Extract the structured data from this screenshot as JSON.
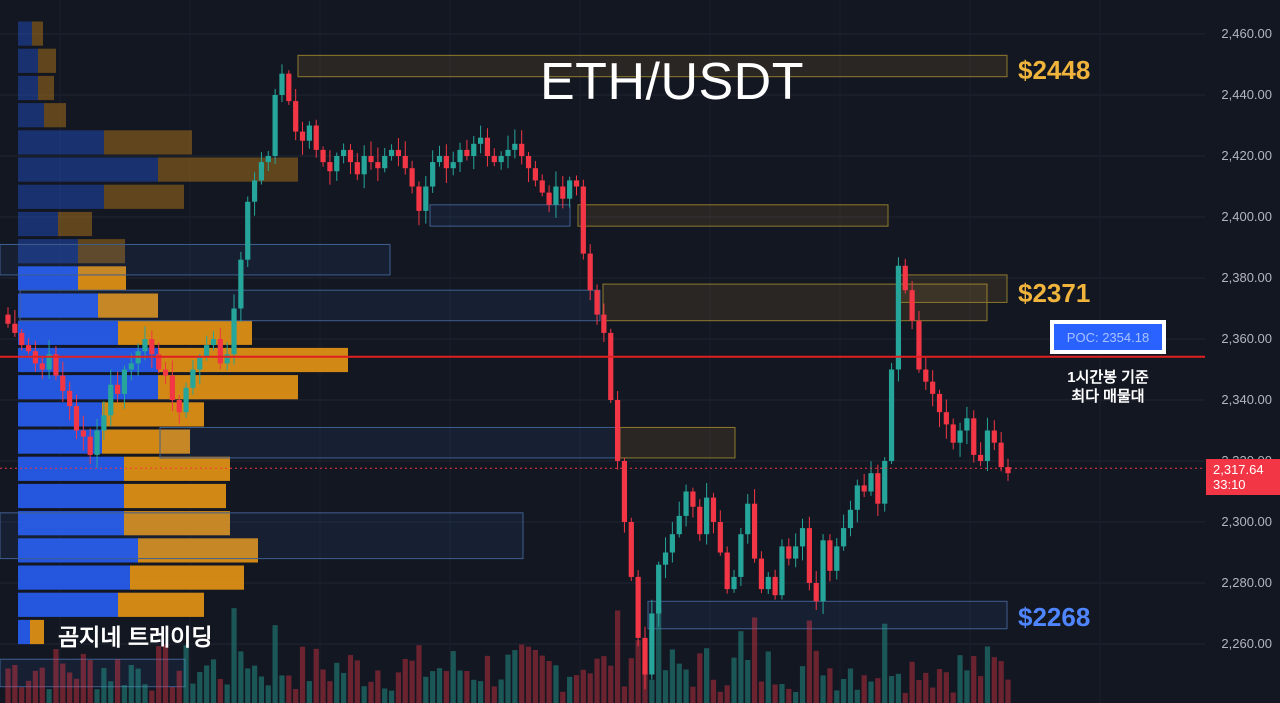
{
  "title": "ETH/USDT",
  "brand": "곰지네 트레이딩",
  "levels": {
    "top": "$2448",
    "mid": "$2371",
    "bottom": "$2268"
  },
  "poc": {
    "label": "POC: 2354.18",
    "value": 2354.18,
    "note_line1": "1시간봉 기준",
    "note_line2": "최다 매물대"
  },
  "last_price": {
    "value_label": "2,317.64",
    "countdown": "33:10",
    "value": 2317.64
  },
  "colors": {
    "background": "#131722",
    "up": "#26a69a",
    "down": "#f23645",
    "poc_line": "#e02020",
    "level_yellow": "#f0b43c",
    "level_blue": "#4f86ff",
    "profile_blue": "#2962ff",
    "profile_orange": "#f39c12"
  },
  "chart_data": {
    "type": "candlestick",
    "title": "ETH/USDT",
    "y_axis": {
      "side": "right",
      "ylim": [
        2245,
        2465
      ],
      "ticks": [
        2460,
        2440,
        2420,
        2400,
        2380,
        2360,
        2340,
        2320,
        2300,
        2280,
        2260
      ],
      "tick_labels": [
        "2,460.00",
        "2,440.00",
        "2,420.00",
        "2,400.00",
        "2,380.00",
        "2,360.00",
        "2,340.00",
        "2,320.00",
        "2,300.00",
        "2,280.00",
        "2,260.00"
      ]
    },
    "grid": true,
    "closes": [
      2365,
      2362,
      2358,
      2356,
      2352,
      2350,
      2355,
      2348,
      2343,
      2338,
      2330,
      2328,
      2322,
      2330,
      2335,
      2345,
      2342,
      2350,
      2352,
      2356,
      2360,
      2355,
      2350,
      2348,
      2340,
      2336,
      2344,
      2350,
      2354,
      2358,
      2360,
      2352,
      2355,
      2370,
      2386,
      2405,
      2412,
      2418,
      2420,
      2440,
      2447,
      2438,
      2428,
      2425,
      2430,
      2422,
      2418,
      2415,
      2420,
      2422,
      2418,
      2414,
      2420,
      2418,
      2416,
      2420,
      2422,
      2420,
      2416,
      2410,
      2402,
      2410,
      2418,
      2420,
      2416,
      2418,
      2422,
      2420,
      2424,
      2426,
      2420,
      2418,
      2420,
      2422,
      2424,
      2420,
      2416,
      2412,
      2408,
      2404,
      2410,
      2406,
      2412,
      2410,
      2388,
      2376,
      2368,
      2362,
      2340,
      2320,
      2300,
      2282,
      2262,
      2250,
      2270,
      2286,
      2290,
      2296,
      2302,
      2310,
      2305,
      2296,
      2308,
      2300,
      2290,
      2278,
      2282,
      2296,
      2306,
      2288,
      2278,
      2282,
      2276,
      2292,
      2288,
      2292,
      2298,
      2280,
      2274,
      2294,
      2284,
      2292,
      2298,
      2304,
      2312,
      2310,
      2316,
      2306,
      2320,
      2350,
      2384,
      2376,
      2366,
      2350,
      2346,
      2342,
      2336,
      2332,
      2326,
      2330,
      2334,
      2322,
      2320,
      2330,
      2326,
      2318,
      2316
    ],
    "poc": 2354.18,
    "annotations": [
      "$2448",
      "$2371",
      "$2268",
      "POC: 2354.18",
      "1시간봉 기준",
      "최다 매물대",
      "2,317.64",
      "33:10"
    ],
    "zones": [
      {
        "color": "yellow",
        "low": 2446,
        "high": 2453
      },
      {
        "color": "blue",
        "low": 2397,
        "high": 2404
      },
      {
        "color": "yellow",
        "low": 2397,
        "high": 2404
      },
      {
        "color": "blue",
        "low": 2381,
        "high": 2391
      },
      {
        "color": "blue",
        "low": 2366,
        "high": 2376
      },
      {
        "color": "yellow",
        "low": 2366,
        "high": 2378
      },
      {
        "color": "yellow",
        "low": 2372,
        "high": 2381
      },
      {
        "color": "blue",
        "low": 2321,
        "high": 2331
      },
      {
        "color": "yellow",
        "low": 2321,
        "high": 2331
      },
      {
        "color": "blue",
        "low": 2288,
        "high": 2303
      },
      {
        "color": "blue",
        "low": 2265,
        "high": 2274
      },
      {
        "color": "blue",
        "low": 2246,
        "high": 2255
      }
    ],
    "volume_profile": [
      {
        "buy": 14,
        "sell": 11
      },
      {
        "buy": 20,
        "sell": 18
      },
      {
        "buy": 20,
        "sell": 16
      },
      {
        "buy": 26,
        "sell": 22
      },
      {
        "buy": 86,
        "sell": 88
      },
      {
        "buy": 140,
        "sell": 140
      },
      {
        "buy": 86,
        "sell": 80
      },
      {
        "buy": 40,
        "sell": 34
      },
      {
        "buy": 60,
        "sell": 47
      },
      {
        "buy": 60,
        "sell": 48
      },
      {
        "buy": 80,
        "sell": 60
      },
      {
        "buy": 100,
        "sell": 134
      },
      {
        "buy": 140,
        "sell": 190
      },
      {
        "buy": 140,
        "sell": 140
      },
      {
        "buy": 84,
        "sell": 102
      },
      {
        "buy": 84,
        "sell": 88
      },
      {
        "buy": 106,
        "sell": 106
      },
      {
        "buy": 106,
        "sell": 102
      },
      {
        "buy": 106,
        "sell": 106
      },
      {
        "buy": 120,
        "sell": 120
      },
      {
        "buy": 112,
        "sell": 114
      },
      {
        "buy": 100,
        "sell": 86
      },
      {
        "buy": 12,
        "sell": 14
      }
    ]
  }
}
